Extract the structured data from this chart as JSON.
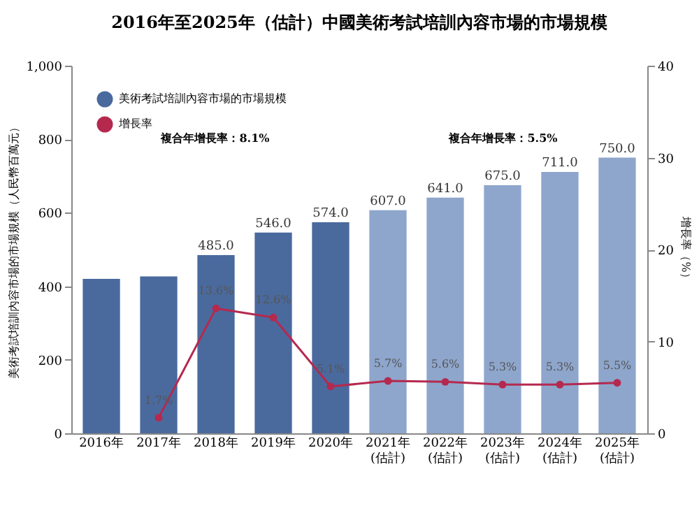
{
  "chart_data": {
    "type": "bar",
    "title": "2016年至2025年（估計）中國美術考試培訓內容市場的市場規模",
    "ylabel": "美術考試培訓內容市場的市場規模（人民幣百萬元）",
    "y2label": "增長率（%）",
    "categories": [
      "2016年",
      "2017年",
      "2018年",
      "2019年",
      "2020年",
      "2021年\n(估計)",
      "2022年\n(估計)",
      "2023年\n(估計)",
      "2024年\n(估計)",
      "2025年\n(估計)"
    ],
    "series": [
      {
        "name": "美術考試培訓內容市場的市場規模",
        "color": "#4a6a9e",
        "colors": [
          "#4a6a9e",
          "#4a6a9e",
          "#4a6a9e",
          "#4a6a9e",
          "#4a6a9e",
          "#8ea6cc",
          "#8ea6cc",
          "#8ea6cc",
          "#8ea6cc",
          "#8ea6cc"
        ],
        "values": [
          420,
          427,
          485.0,
          546.0,
          574.0,
          607.0,
          641.0,
          675.0,
          711.0,
          750.0
        ],
        "value_labels": [
          null,
          null,
          "485.0",
          "546.0",
          "574.0",
          "607.0",
          "641.0",
          "675.0",
          "711.0",
          "750.0"
        ]
      },
      {
        "name": "增長率",
        "type": "line",
        "axis": "y2",
        "color": "#b5294f",
        "values": [
          null,
          1.7,
          13.6,
          12.6,
          5.1,
          5.7,
          5.6,
          5.3,
          5.3,
          5.5
        ],
        "value_labels": [
          null,
          "1.7%",
          "13.6%",
          "12.6%",
          "5.1%",
          "5.7%",
          "5.6%",
          "5.3%",
          "5.3%",
          "5.5%"
        ]
      }
    ],
    "ylim": [
      0,
      1000
    ],
    "yticks": [
      0,
      200,
      400,
      600,
      800,
      {
        "value": 1000,
        "label": "1,000"
      }
    ],
    "y2lim": [
      0,
      40
    ],
    "y2ticks": [
      0,
      10,
      20,
      30,
      40
    ],
    "marker": "circle",
    "legend": "top left",
    "grid": false,
    "annotations": [
      "複合年增長率：8.1%",
      "複合年增長率：5.5%"
    ]
  }
}
